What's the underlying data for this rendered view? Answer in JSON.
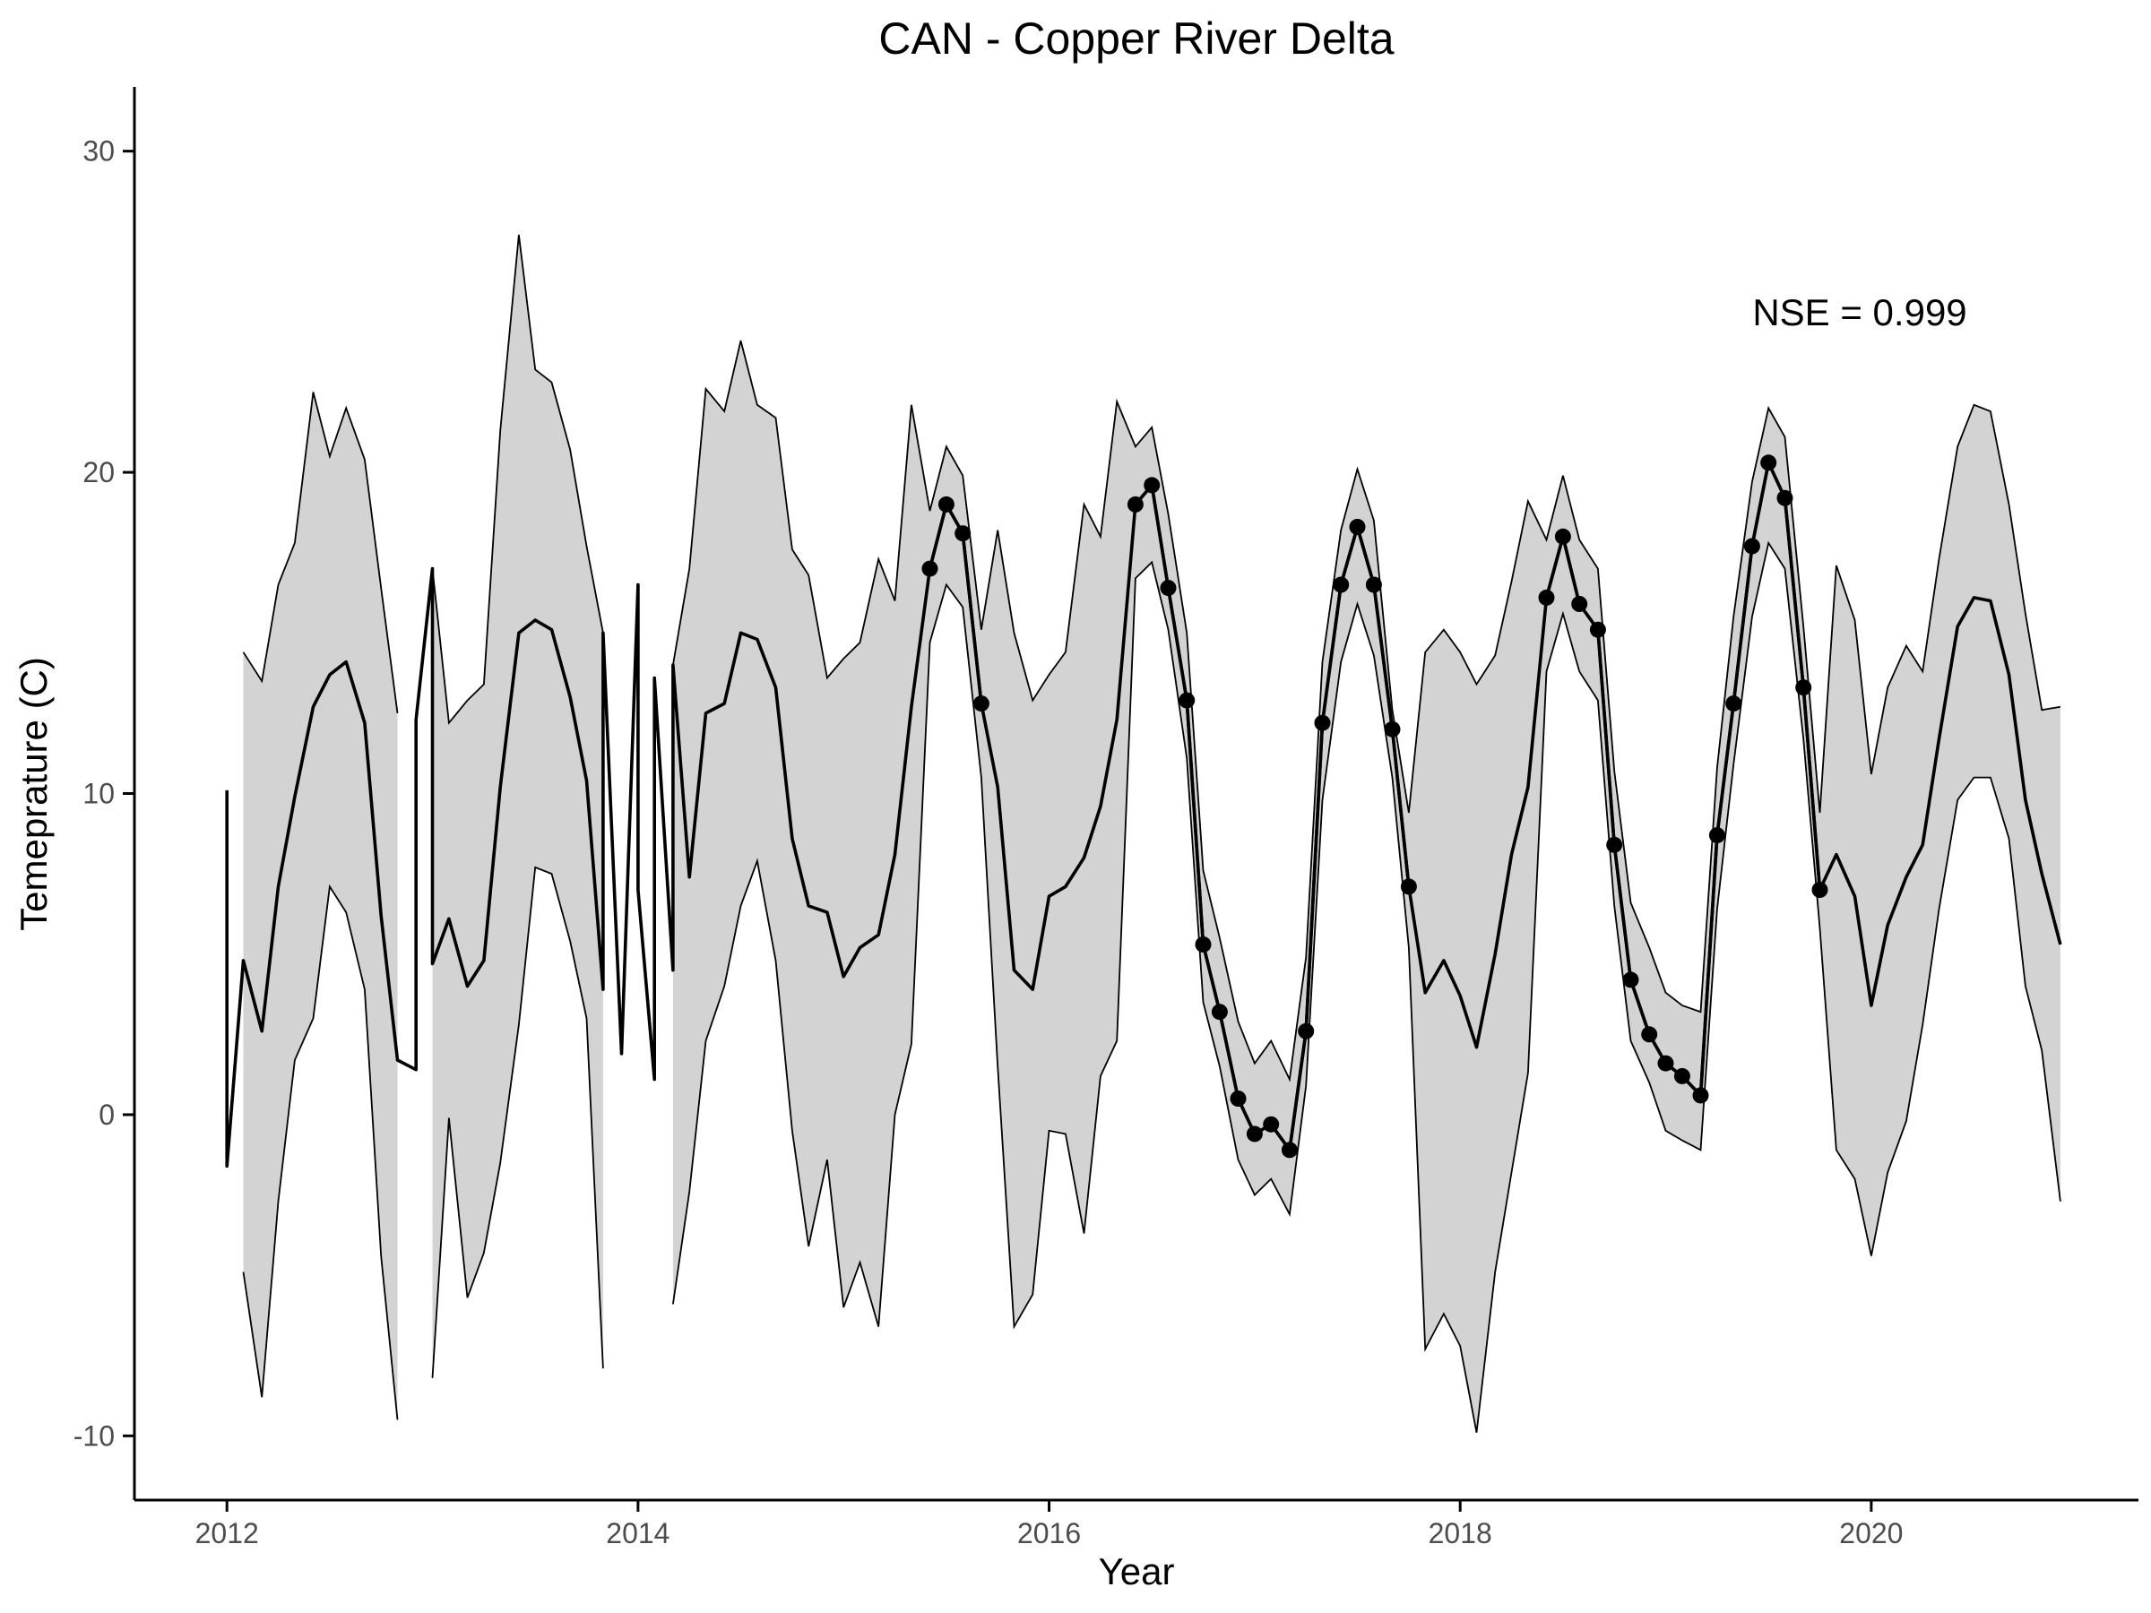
{
  "chart_data": {
    "type": "line",
    "title": "CAN - Copper River Delta",
    "xlabel": "Year",
    "ylabel": "Temeprature (C)",
    "annotation": "NSE = 0.999",
    "xlim": [
      2011.55,
      2021.3
    ],
    "ylim": [
      -12.0,
      32.0
    ],
    "x_ticks": [
      2012,
      2014,
      2016,
      2018,
      2020
    ],
    "y_ticks": [
      -10,
      0,
      10,
      20,
      30
    ],
    "grid": false,
    "legend": "none",
    "colors": {
      "line": "#000000",
      "ribbon": "#d3d3d3",
      "axis": "#000000",
      "tick_label": "#4d4d4d"
    },
    "series": [
      {
        "role": "predicted",
        "x": [
          2012.0,
          2012.08,
          2012.17,
          2012.25,
          2012.33,
          2012.42,
          2012.5,
          2012.58,
          2012.67,
          2012.75,
          2012.83,
          2012.92,
          2013.0,
          2013.08,
          2013.17,
          2013.25,
          2013.33,
          2013.42,
          2013.5,
          2013.58,
          2013.67,
          2013.75,
          2013.83,
          2013.92,
          2014.0,
          2014.08,
          2014.17,
          2014.25,
          2014.33,
          2014.42,
          2014.5,
          2014.58,
          2014.67,
          2014.75,
          2014.83,
          2014.92,
          2015.0,
          2015.08,
          2015.17,
          2015.25,
          2015.33,
          2015.42,
          2015.5,
          2015.58,
          2015.67,
          2015.75,
          2015.83,
          2015.92,
          2016.0,
          2016.08,
          2016.17,
          2016.25,
          2016.33,
          2016.42,
          2016.5,
          2016.58,
          2016.67,
          2016.75,
          2016.83,
          2016.92,
          2017.0,
          2017.08,
          2017.17,
          2017.25,
          2017.33,
          2017.42,
          2017.5,
          2017.58,
          2017.67,
          2017.75,
          2017.83,
          2017.92,
          2018.0,
          2018.08,
          2018.17,
          2018.25,
          2018.33,
          2018.42,
          2018.5,
          2018.58,
          2018.67,
          2018.75,
          2018.83,
          2018.92,
          2019.0,
          2019.08,
          2019.17,
          2019.25,
          2019.33,
          2019.42,
          2019.5,
          2019.58,
          2019.67,
          2019.75,
          2019.83,
          2019.92,
          2020.0,
          2020.08,
          2020.17,
          2020.25,
          2020.33,
          2020.42,
          2020.5,
          2020.58,
          2020.67,
          2020.75,
          2020.83,
          2020.92
        ],
        "y": [
          [
            10.1,
            -1.6
          ],
          4.8,
          2.6,
          7.1,
          9.9,
          12.7,
          13.7,
          14.1,
          12.2,
          6.2,
          1.7,
          [
            1.4,
            12.3
          ],
          [
            17.0,
            4.7
          ],
          6.1,
          4.0,
          4.8,
          10.2,
          15.0,
          15.4,
          15.1,
          13.0,
          10.4,
          [
            3.9,
            15.0
          ],
          1.9,
          [
            16.5,
            7.0
          ],
          [
            1.1,
            13.6
          ],
          [
            4.5,
            14.0
          ],
          7.4,
          12.5,
          12.8,
          15.0,
          14.8,
          13.3,
          8.6,
          6.5,
          6.3,
          4.3,
          5.2,
          5.6,
          8.1,
          12.7,
          17.0,
          19.0,
          18.1,
          12.8,
          10.2,
          4.5,
          3.9,
          6.8,
          7.1,
          8.0,
          9.6,
          12.3,
          19.0,
          19.6,
          16.4,
          12.9,
          5.3,
          3.2,
          0.5,
          -0.6,
          -0.3,
          -1.1,
          2.6,
          12.2,
          16.5,
          18.3,
          16.5,
          12.0,
          7.1,
          3.8,
          4.8,
          3.7,
          2.1,
          5.0,
          8.1,
          10.2,
          16.1,
          18.0,
          15.9,
          15.1,
          8.4,
          4.2,
          2.5,
          1.6,
          1.2,
          0.6,
          8.7,
          12.8,
          17.7,
          20.3,
          19.2,
          13.3,
          7.0,
          8.1,
          6.8,
          3.4,
          5.9,
          7.4,
          8.4,
          11.7,
          15.2,
          16.1,
          16.0,
          13.7,
          9.8,
          7.5,
          5.3
        ]
      },
      {
        "role": "observed",
        "x": [
          2015.42,
          2015.5,
          2015.58,
          2015.67,
          2016.42,
          2016.5,
          2016.58,
          2016.67,
          2016.75,
          2016.83,
          2016.92,
          2017.0,
          2017.08,
          2017.17,
          2017.25,
          2017.33,
          2017.42,
          2017.5,
          2017.58,
          2017.67,
          2017.75,
          2018.42,
          2018.5,
          2018.58,
          2018.67,
          2018.75,
          2018.83,
          2018.92,
          2019.0,
          2019.08,
          2019.17,
          2019.25,
          2019.33,
          2019.42,
          2019.5,
          2019.58,
          2019.67,
          2019.75
        ],
        "y": [
          17.0,
          19.0,
          18.1,
          12.8,
          19.0,
          19.6,
          16.4,
          12.9,
          5.3,
          3.2,
          0.5,
          -0.6,
          -0.3,
          -1.1,
          2.6,
          12.2,
          16.5,
          18.3,
          16.5,
          12.0,
          7.1,
          16.1,
          18.0,
          15.9,
          15.1,
          8.4,
          4.2,
          2.5,
          1.6,
          1.2,
          0.6,
          8.7,
          12.8,
          17.7,
          20.3,
          19.2,
          13.3,
          7.0
        ]
      }
    ],
    "ribbon": {
      "segments": [
        {
          "x": [
            2012.08,
            2012.17,
            2012.25,
            2012.33,
            2012.42,
            2012.5,
            2012.58,
            2012.67,
            2012.75,
            2012.83
          ],
          "upper": [
            14.4,
            13.5,
            16.5,
            17.8,
            22.5,
            20.5,
            22.0,
            20.4,
            16.4,
            12.5
          ],
          "lower": [
            -4.9,
            -8.8,
            -2.7,
            1.7,
            3.0,
            7.1,
            6.3,
            3.9,
            -4.4,
            -9.5
          ]
        },
        {
          "x": [
            2013.0,
            2013.08,
            2013.17,
            2013.25,
            2013.33,
            2013.42,
            2013.5,
            2013.58,
            2013.67,
            2013.75,
            2013.83
          ],
          "upper": [
            17.0,
            12.2,
            12.9,
            13.4,
            21.3,
            27.4,
            23.2,
            22.8,
            20.7,
            17.7,
            15.0
          ],
          "lower": [
            -8.2,
            -0.1,
            -5.7,
            -4.3,
            -1.5,
            2.8,
            7.7,
            7.5,
            5.4,
            3.0,
            -7.9
          ]
        },
        {
          "x": [
            2014.17,
            2014.25,
            2014.33,
            2014.42,
            2014.5,
            2014.58,
            2014.67,
            2014.75,
            2014.83,
            2014.92,
            2015.0,
            2015.08,
            2015.17,
            2015.25,
            2015.33,
            2015.42,
            2015.5,
            2015.58,
            2015.67,
            2015.75,
            2015.83,
            2015.92,
            2016.0,
            2016.08,
            2016.17,
            2016.25,
            2016.33,
            2016.42,
            2016.5,
            2016.58,
            2016.67,
            2016.75,
            2016.83,
            2016.92,
            2017.0,
            2017.08,
            2017.17,
            2017.25,
            2017.33,
            2017.42,
            2017.5,
            2017.58,
            2017.67,
            2017.75,
            2017.83,
            2017.92,
            2018.0,
            2018.08,
            2018.17,
            2018.25,
            2018.33,
            2018.42,
            2018.5,
            2018.58,
            2018.67,
            2018.75,
            2018.83,
            2018.92,
            2019.0,
            2019.08,
            2019.17,
            2019.25,
            2019.33,
            2019.42,
            2019.5,
            2019.58,
            2019.67,
            2019.75,
            2019.83,
            2019.92,
            2020.0,
            2020.08,
            2020.17,
            2020.25,
            2020.33,
            2020.42,
            2020.5,
            2020.58,
            2020.67,
            2020.75,
            2020.83,
            2020.92
          ],
          "upper": [
            14.0,
            17.0,
            22.6,
            21.9,
            24.1,
            22.1,
            21.7,
            17.6,
            16.8,
            13.6,
            14.2,
            14.7,
            17.3,
            16.0,
            22.1,
            18.8,
            20.8,
            19.9,
            15.1,
            18.2,
            15.0,
            12.9,
            13.7,
            14.4,
            19.0,
            18.0,
            22.2,
            20.8,
            21.4,
            18.7,
            15.0,
            7.6,
            5.5,
            2.9,
            1.6,
            2.3,
            1.1,
            4.9,
            14.1,
            18.2,
            20.1,
            18.5,
            12.6,
            9.4,
            14.4,
            15.1,
            14.4,
            13.4,
            14.3,
            16.6,
            19.1,
            17.9,
            19.9,
            17.9,
            17.0,
            10.7,
            6.6,
            5.2,
            3.8,
            3.4,
            3.2,
            10.8,
            15.5,
            19.7,
            22.0,
            21.1,
            15.2,
            9.4,
            17.1,
            15.4,
            10.6,
            13.3,
            14.6,
            13.8,
            17.3,
            20.8,
            22.1,
            21.9,
            19.0,
            15.6,
            12.6,
            12.7
          ],
          "lower": [
            -5.9,
            -2.4,
            2.3,
            4.0,
            6.5,
            7.9,
            4.8,
            -0.5,
            -4.1,
            -1.4,
            -6.0,
            -4.6,
            -6.6,
            0.0,
            2.2,
            14.7,
            16.5,
            15.8,
            10.5,
            1.5,
            -6.6,
            -5.6,
            -0.5,
            -0.6,
            -3.7,
            1.2,
            2.3,
            16.7,
            17.2,
            15.1,
            11.1,
            3.5,
            1.5,
            -1.4,
            -2.5,
            -2.0,
            -3.1,
            0.9,
            9.8,
            14.1,
            15.9,
            14.3,
            10.5,
            5.2,
            -7.3,
            -6.2,
            -7.2,
            -9.9,
            -4.9,
            -1.8,
            1.3,
            13.8,
            15.6,
            13.8,
            12.9,
            6.5,
            2.3,
            1.0,
            -0.5,
            -0.8,
            -1.1,
            6.4,
            10.9,
            15.5,
            17.8,
            17.0,
            11.7,
            5.8,
            -1.1,
            -2.0,
            -4.4,
            -1.8,
            -0.2,
            2.8,
            6.4,
            9.8,
            10.5,
            10.5,
            8.6,
            4.0,
            2.0,
            -2.7
          ]
        }
      ]
    }
  }
}
